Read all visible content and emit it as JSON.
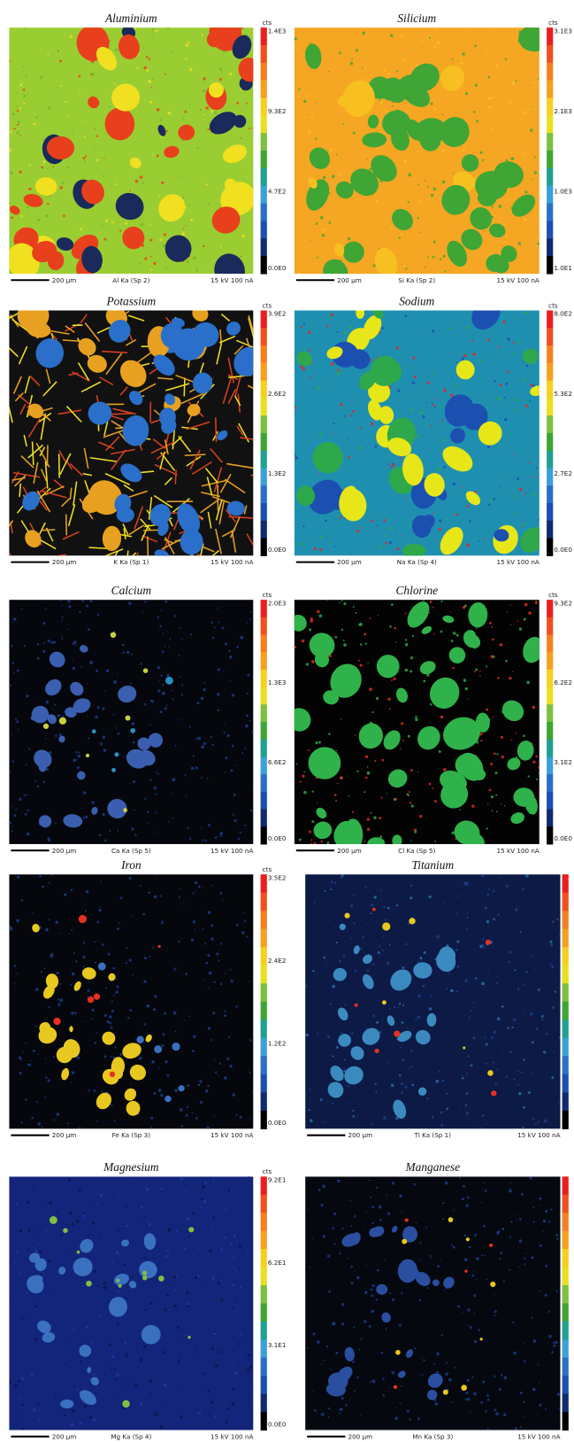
{
  "panels": [
    {
      "title": "Aluminium",
      "unit": "cts",
      "scale_labels": [
        "1.4E3",
        "9.3E2",
        "4.7E2",
        "0.0E0"
      ],
      "scalebar": "200 µm",
      "line": "Al Ka (Sp 2)",
      "conditions": "15 kV 100 nA"
    },
    {
      "title": "Silicium",
      "unit": "cts",
      "scale_labels": [
        "3.1E3",
        "2.1E3",
        "1.0E3",
        "1.0E1"
      ],
      "scalebar": "200 µm",
      "line": "Si Ka (Sp 2)",
      "conditions": "15 kV 100 nA"
    },
    {
      "title": "Potassium",
      "unit": "cts",
      "scale_labels": [
        "3.9E2",
        "2.6E2",
        "1.3E2",
        "0.0E0"
      ],
      "scalebar": "200 µm",
      "line": "K  Ka (Sp 1)",
      "conditions": "15 kV 100 nA"
    },
    {
      "title": "Sodium",
      "unit": "cts",
      "scale_labels": [
        "8.0E2",
        "5.3E2",
        "2.7E2",
        "0.0E0"
      ],
      "scalebar": "200 µm",
      "line": "Na Ka (Sp 4)",
      "conditions": "15 kV 100 nA"
    },
    {
      "title": "Calcium",
      "unit": "cts",
      "scale_labels": [
        "2.0E3",
        "1.3E3",
        "6.6E2",
        "0.0E0"
      ],
      "scalebar": "200 µm",
      "line": "Ca Ka (Sp 5)",
      "conditions": "15 kV 100 nA"
    },
    {
      "title": "Chlorine",
      "unit": "cts",
      "scale_labels": [
        "9.3E2",
        "6.2E2",
        "3.1E2",
        "0.0E0"
      ],
      "scalebar": "200 µm",
      "line": "Cl Ka (Sp 5)",
      "conditions": "15 kV 100 nA"
    },
    {
      "title": "Iron",
      "unit": "cts",
      "scale_labels": [
        "3.5E2",
        "2.4E2",
        "1.2E2",
        "0.0E0"
      ],
      "scalebar": "200 µm",
      "line": "Fe Ka (Sp 3)",
      "conditions": "15 kV 100 nA"
    },
    {
      "title": "Titanium",
      "scalebar": "200 µm",
      "line": "Ti Ka (Sp 1)",
      "conditions": "15 kV 100 nA"
    },
    {
      "title": "Magnesium",
      "unit": "cts",
      "scale_labels": [
        "9.2E1",
        "6.2E1",
        "3.1E1",
        "0.0E0"
      ],
      "scalebar": "200 µm",
      "line": "Mg Ka (Sp 4)",
      "conditions": "15 kV 100 nA"
    },
    {
      "title": "Manganese",
      "scalebar": "200 µm",
      "line": "Mn Ka (Sp 3)",
      "conditions": "15 kV 100 nA"
    }
  ]
}
